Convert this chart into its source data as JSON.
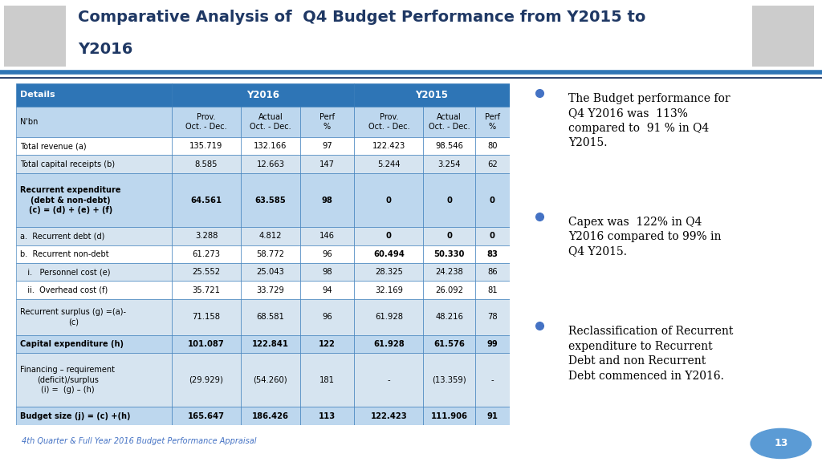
{
  "title_line1": "Comparative Analysis of  Q4 Budget Performance from Y2015 to",
  "title_line2": "Y2016",
  "title_color": "#1F3864",
  "header_bg": "#2E75B6",
  "header_text_color": "#FFFFFF",
  "subheader_bg": "#BDD7EE",
  "row_bg_shaded": "#D6E4F0",
  "bold_row_bg": "#BDD7EE",
  "border_color": "#2E75B6",
  "footer_text": "4th Quarter & Full Year 2016 Budget Performance Appraisal",
  "footer_color": "#4472C4",
  "page_num": "13",
  "page_num_bg": "#5B9BD5",
  "bullet_color": "#4472C4",
  "bullet_points": [
    "The Budget performance for\nQ4 Y2016 was  113%\ncompared to  91 % in Q4\nY2015.",
    "Capex was  122% in Q4\nY2016 compared to 99% in\nQ4 Y2015.",
    "Reclassification of Recurrent\nexpenditure to Recurrent\nDebt and non Recurrent\nDebt commenced in Y2016."
  ],
  "table_rows": [
    {
      "label": "Total revenue (a)",
      "vals": [
        "135.719",
        "132.166",
        "97",
        "122.423",
        "98.546",
        "80"
      ],
      "bold": false,
      "shaded": false,
      "lines": 1
    },
    {
      "label": "Total capital receipts (b)",
      "vals": [
        "8.585",
        "12.663",
        "147",
        "5.244",
        "3.254",
        "62"
      ],
      "bold": false,
      "shaded": true,
      "lines": 1
    },
    {
      "label": "Recurrent expenditure\n(debt & non-debt)\n(c) = (d) + (e) + (f)",
      "vals": [
        "64.561",
        "63.585",
        "98",
        "0",
        "0",
        "0"
      ],
      "bold": true,
      "shaded": false,
      "lines": 3
    },
    {
      "label": "a.  Recurrent debt (d)",
      "vals": [
        "3.288",
        "4.812",
        "146",
        "0",
        "0",
        "0"
      ],
      "bold": false,
      "shaded": true,
      "lines": 1,
      "bold_y15": true
    },
    {
      "label": "b.  Recurrent non-debt",
      "vals": [
        "61.273",
        "58.772",
        "96",
        "60.494",
        "50.330",
        "83"
      ],
      "bold": false,
      "shaded": false,
      "lines": 1,
      "bold_y15": true
    },
    {
      "label": "   i.   Personnel cost (e)",
      "vals": [
        "25.552",
        "25.043",
        "98",
        "28.325",
        "24.238",
        "86"
      ],
      "bold": false,
      "shaded": true,
      "lines": 1
    },
    {
      "label": "   ii.  Overhead cost (f)",
      "vals": [
        "35.721",
        "33.729",
        "94",
        "32.169",
        "26.092",
        "81"
      ],
      "bold": false,
      "shaded": false,
      "lines": 1
    },
    {
      "label": "Recurrent surplus (g) =(a)-\n(c)",
      "vals": [
        "71.158",
        "68.581",
        "96",
        "61.928",
        "48.216",
        "78"
      ],
      "bold": false,
      "shaded": true,
      "lines": 2
    },
    {
      "label": "Capital expenditure (h)",
      "vals": [
        "101.087",
        "122.841",
        "122",
        "61.928",
        "61.576",
        "99"
      ],
      "bold": true,
      "shaded": false,
      "lines": 1
    },
    {
      "label": "Financing – requirement\n(deficit)/surplus\n(i) =  (g) – (h)",
      "vals": [
        "(29.929)",
        "(54.260)",
        "181",
        "-",
        "(13.359)",
        "-"
      ],
      "bold": false,
      "shaded": true,
      "lines": 3
    },
    {
      "label": "Budget size (j) = (c) +(h)",
      "vals": [
        "165.647",
        "186.426",
        "113",
        "122.423",
        "111.906",
        "91"
      ],
      "bold": true,
      "shaded": false,
      "lines": 1
    }
  ],
  "slide_bg": "#FFFFFF",
  "title_bg": "#F2F2F2",
  "divider_color1": "#2E75B6",
  "divider_color2": "#1F3864"
}
